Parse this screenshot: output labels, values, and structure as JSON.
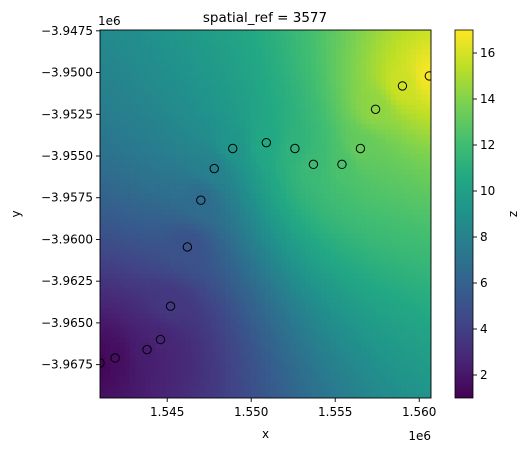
{
  "chart_data": {
    "type": "heatmap",
    "title": "spatial_ref = 3577",
    "xlabel": "x",
    "ylabel": "y",
    "x_offset_label": "1e6",
    "y_offset_label": "1e6",
    "xlim": [
      1.541,
      1.5607
    ],
    "ylim": [
      -3.9695,
      -3.94745
    ],
    "x_ticks": [
      1.545,
      1.55,
      1.555,
      1.56
    ],
    "x_tick_labels": [
      "1.545",
      "1.550",
      "1.555",
      "1.560"
    ],
    "y_ticks": [
      -3.9475,
      -3.95,
      -3.9525,
      -3.955,
      -3.9575,
      -3.96,
      -3.9625,
      -3.965,
      -3.9675
    ],
    "y_tick_labels": [
      "−3.9475",
      "−3.9500",
      "−3.9525",
      "−3.9550",
      "−3.9575",
      "−3.9600",
      "−3.9625",
      "−3.9650",
      "−3.9675"
    ],
    "colorbar": {
      "label": "z",
      "colormap": "viridis",
      "range": [
        1.0,
        17.0
      ],
      "ticks": [
        2,
        4,
        6,
        8,
        10,
        12,
        14,
        16
      ],
      "tick_labels": [
        "2",
        "4",
        "6",
        "8",
        "10",
        "12",
        "14",
        "16"
      ]
    },
    "scatter_points": [
      {
        "x": 1.541,
        "y": -3.9674,
        "z": 1.2
      },
      {
        "x": 1.5419,
        "y": -3.9671,
        "z": 1.6
      },
      {
        "x": 1.5438,
        "y": -3.9666,
        "z": 2.3
      },
      {
        "x": 1.5446,
        "y": -3.966,
        "z": 2.7
      },
      {
        "x": 1.5452,
        "y": -3.964,
        "z": 3.6
      },
      {
        "x": 1.5462,
        "y": -3.96045,
        "z": 5.0
      },
      {
        "x": 1.547,
        "y": -3.95765,
        "z": 6.6
      },
      {
        "x": 1.5478,
        "y": -3.95575,
        "z": 8.0
      },
      {
        "x": 1.5489,
        "y": -3.95455,
        "z": 9.3
      },
      {
        "x": 1.5509,
        "y": -3.9542,
        "z": 10.6
      },
      {
        "x": 1.5526,
        "y": -3.95455,
        "z": 11.3
      },
      {
        "x": 1.5537,
        "y": -3.9555,
        "z": 11.8
      },
      {
        "x": 1.5554,
        "y": -3.9555,
        "z": 12.4
      },
      {
        "x": 1.5565,
        "y": -3.95455,
        "z": 13.2
      },
      {
        "x": 1.5574,
        "y": -3.9522,
        "z": 14.3
      },
      {
        "x": 1.559,
        "y": -3.9508,
        "z": 15.8
      },
      {
        "x": 1.5606,
        "y": -3.9502,
        "z": 16.8
      }
    ],
    "grid": false,
    "legend": "none"
  }
}
